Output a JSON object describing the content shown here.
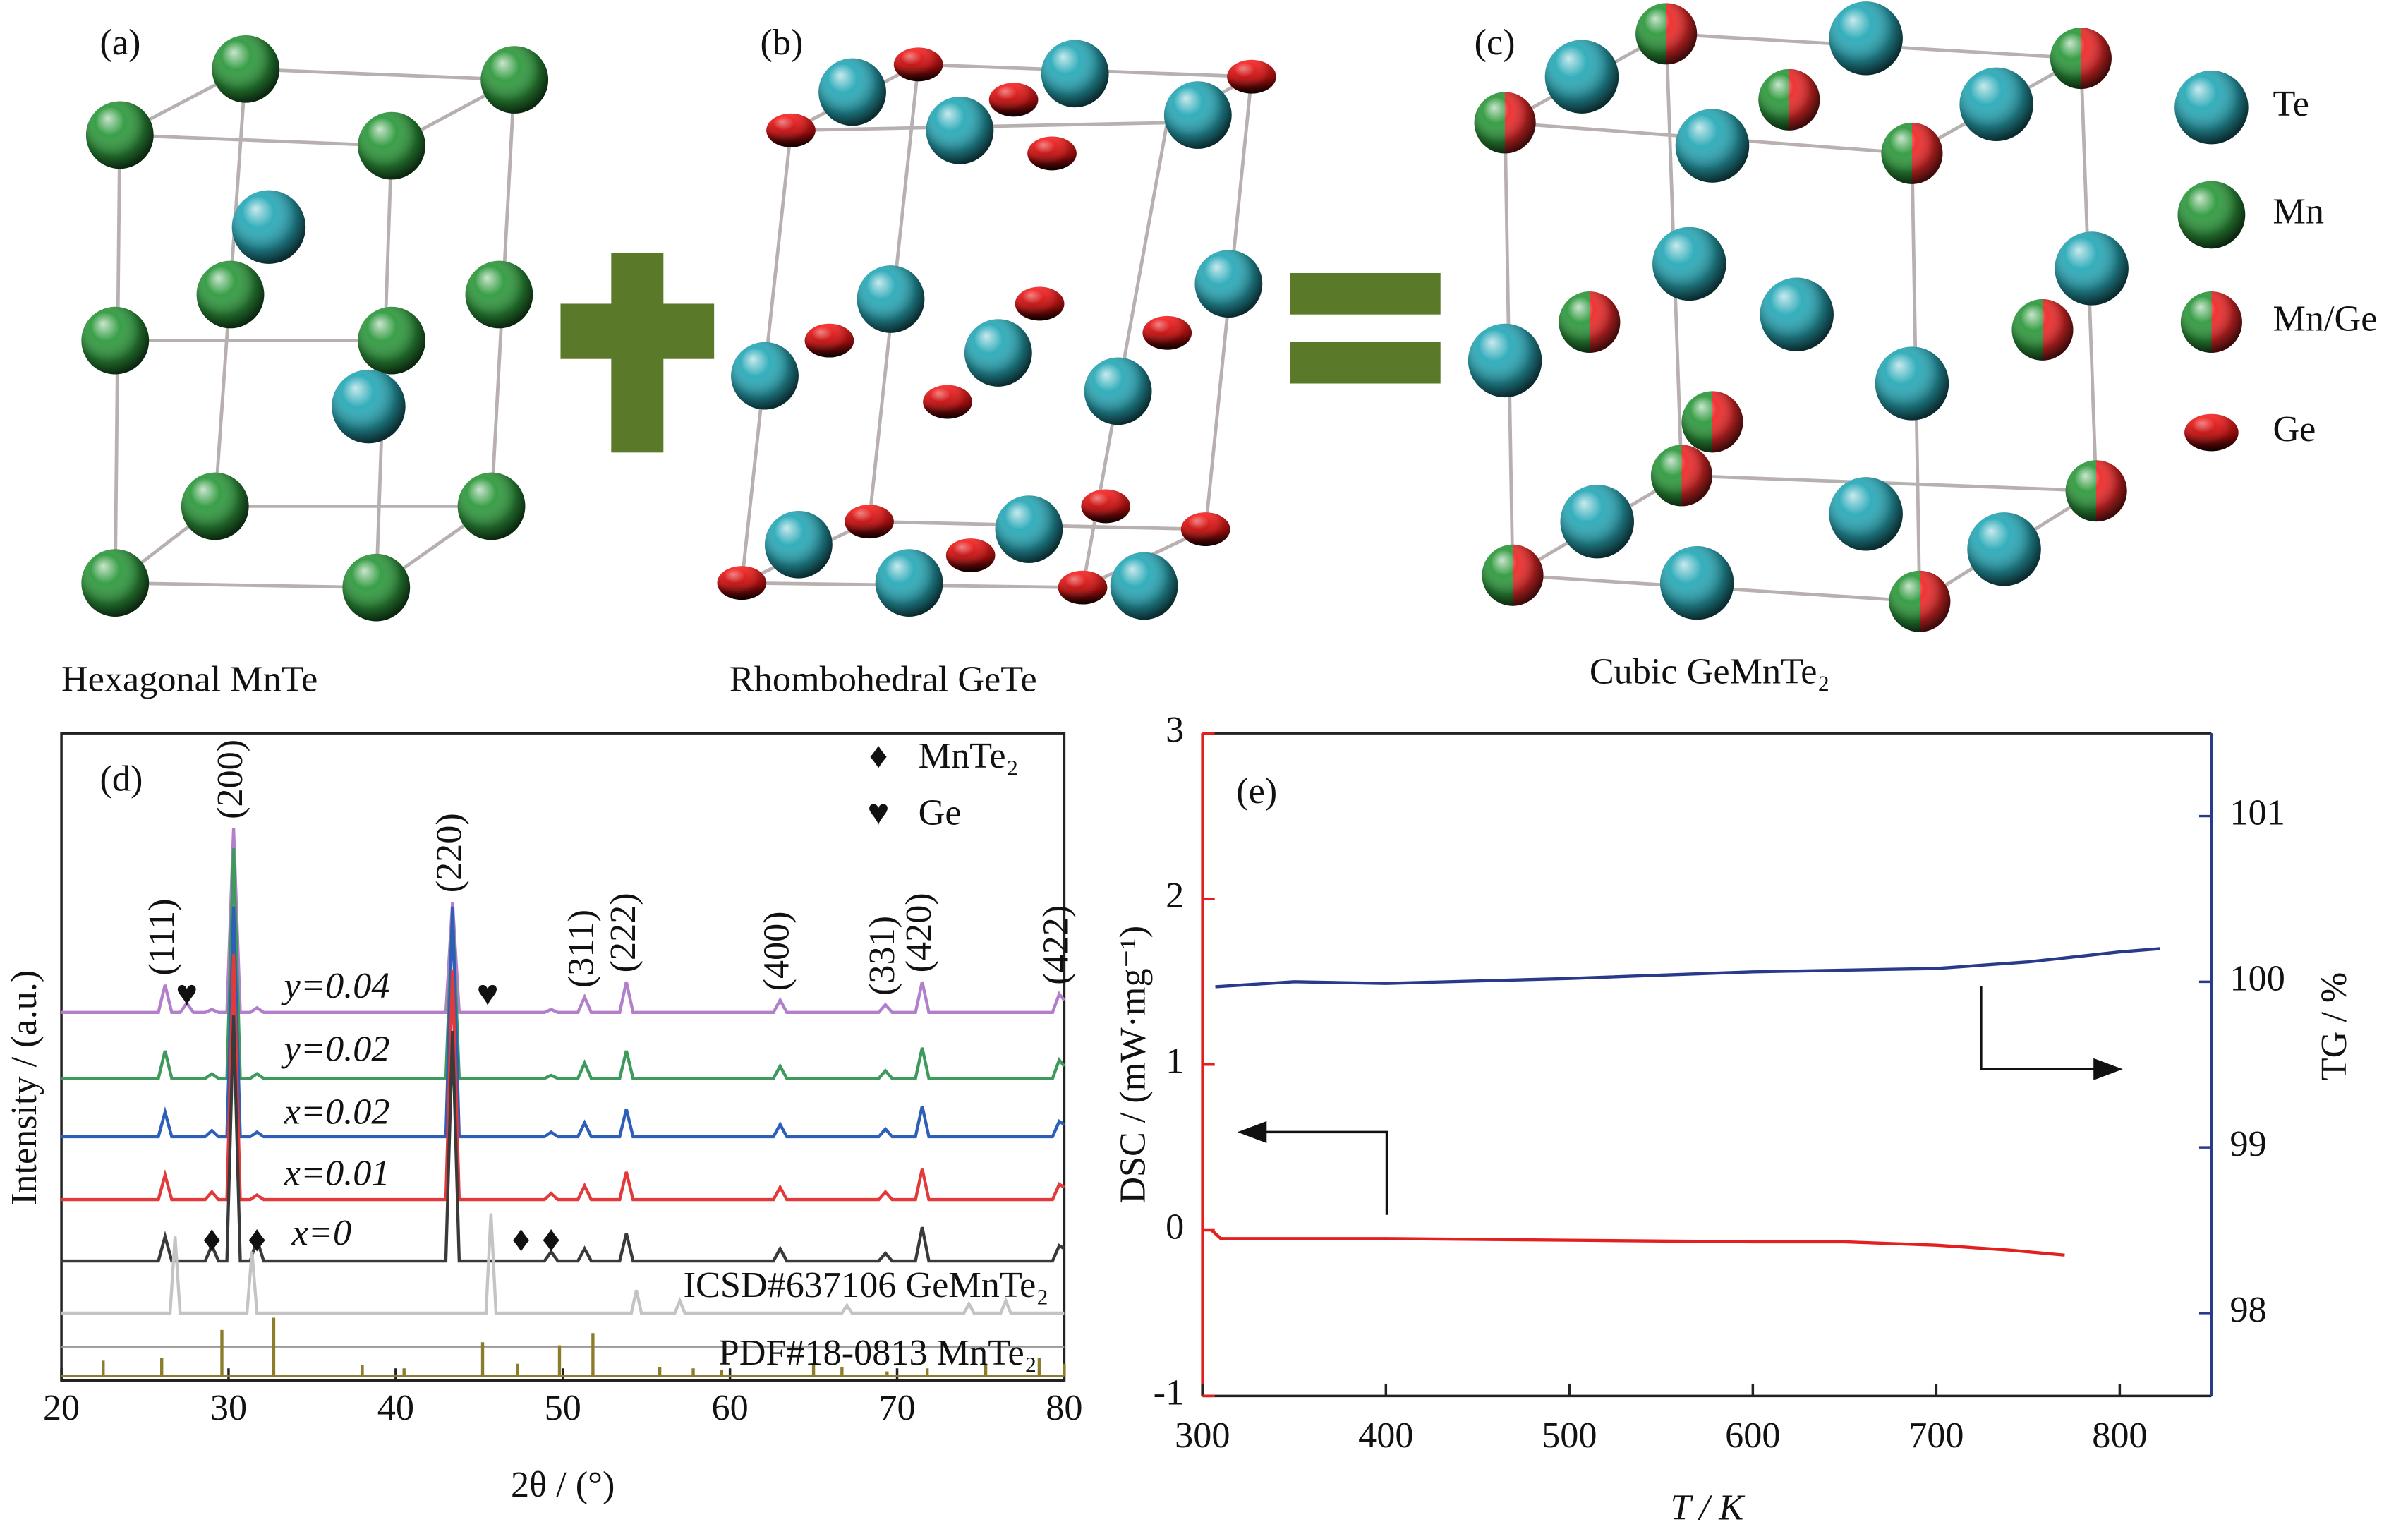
{
  "structures": [
    {
      "label": "(a)",
      "caption": "Hexagonal MnTe"
    },
    {
      "label": "(b)",
      "caption": "Rhombohedral GeTe"
    },
    {
      "label": "(c)",
      "caption": "Cubic GeMnTe₂"
    }
  ],
  "atom_legend": [
    "Te",
    "Mn",
    "Mn/Ge",
    "Ge"
  ],
  "chart_data": [
    {
      "type": "line",
      "panel": "(d)",
      "x_label": "2θ / (°)",
      "y_label": "Intensity / (a.u.)",
      "xlim": [
        20,
        80
      ],
      "xticks": [
        20,
        30,
        40,
        50,
        60,
        70,
        80
      ],
      "x": [
        20,
        25.8,
        26.2,
        26.6,
        27.1,
        27.5,
        27.9,
        28.6,
        29,
        29.4,
        29.9,
        30.3,
        30.7,
        31.3,
        31.7,
        32.1,
        43.0,
        43.4,
        43.8,
        48.9,
        49.3,
        49.7,
        50.9,
        51.3,
        51.7,
        53.4,
        53.8,
        54.2,
        62.6,
        63,
        63.4,
        68.9,
        69.3,
        69.7,
        71.1,
        71.5,
        71.9,
        79.3,
        79.7,
        80
      ],
      "series": [
        {
          "name": "y=0.04",
          "color": "#b27fcb",
          "values": [
            0,
            0,
            18,
            0,
            0,
            6,
            0,
            0,
            2,
            0,
            0,
            120,
            0,
            0,
            3,
            0,
            0,
            72,
            0,
            0,
            2,
            0,
            0,
            10,
            0,
            0,
            20,
            0,
            0,
            8,
            0,
            0,
            5,
            0,
            0,
            20,
            0,
            0,
            12,
            8
          ]
        },
        {
          "name": "y=0.02",
          "color": "#3d9a5c",
          "values": [
            0,
            0,
            18,
            0,
            0,
            0,
            0,
            0,
            3,
            0,
            0,
            150,
            0,
            0,
            3,
            0,
            0,
            110,
            0,
            0,
            2,
            0,
            0,
            10,
            0,
            0,
            18,
            0,
            0,
            8,
            0,
            0,
            5,
            0,
            0,
            20,
            0,
            0,
            12,
            8
          ]
        },
        {
          "name": "x=0.02",
          "color": "#2d5fb8",
          "values": [
            0,
            0,
            16,
            0,
            0,
            0,
            0,
            0,
            4,
            0,
            0,
            150,
            0,
            0,
            3,
            0,
            0,
            150,
            0,
            0,
            3,
            0,
            0,
            9,
            0,
            0,
            18,
            0,
            0,
            8,
            0,
            0,
            5,
            0,
            0,
            20,
            0,
            0,
            10,
            8
          ]
        },
        {
          "name": "x=0.01",
          "color": "#e23a3a",
          "values": [
            0,
            0,
            16,
            0,
            0,
            0,
            0,
            0,
            5,
            0,
            0,
            160,
            0,
            0,
            3,
            0,
            0,
            150,
            0,
            0,
            4,
            0,
            0,
            9,
            0,
            0,
            18,
            0,
            0,
            8,
            0,
            0,
            5,
            0,
            0,
            20,
            0,
            0,
            10,
            8
          ]
        },
        {
          "name": "x=0",
          "color": "#3a3a3a",
          "values": [
            0,
            0,
            16,
            0,
            0,
            0,
            0,
            0,
            10,
            0,
            0,
            160,
            0,
            0,
            14,
            0,
            0,
            150,
            0,
            0,
            6,
            0,
            0,
            8,
            0,
            0,
            18,
            0,
            0,
            8,
            0,
            0,
            5,
            0,
            0,
            22,
            0,
            0,
            10,
            8
          ]
        },
        {
          "name": "ICSD#637106 GeMnTe₂",
          "color": "#c4c4c4",
          "x": [
            20,
            26.5,
            26.8,
            27.1,
            31.1,
            31.4,
            31.7,
            45.4,
            45.7,
            46.0,
            54.1,
            54.4,
            54.7,
            56.7,
            57,
            57.3,
            66.7,
            67,
            67.3,
            74,
            74.3,
            74.6,
            76.2,
            76.5,
            76.8,
            80
          ],
          "values": [
            0,
            0,
            50,
            0,
            0,
            40,
            0,
            0,
            65,
            0,
            0,
            15,
            0,
            0,
            8,
            0,
            0,
            5,
            0,
            0,
            6,
            0,
            0,
            8,
            0,
            0
          ]
        },
        {
          "name": "PDF#18-0813 MnTe₂",
          "color": "#8b7d2a",
          "style": "stick",
          "x": [
            22.5,
            26,
            29.6,
            32.7,
            38,
            40.5,
            45.2,
            47.3,
            49.8,
            51.8,
            55.8,
            57.8,
            59.5,
            65,
            66.7,
            69.4,
            71.8,
            75.3,
            78.5,
            80
          ],
          "values": [
            10,
            12,
            30,
            38,
            7,
            5,
            22,
            8,
            20,
            28,
            6,
            5,
            4,
            7,
            6,
            3,
            5,
            7,
            12,
            8
          ]
        }
      ],
      "annotations": [
        {
          "text": "(111)",
          "x": 26.2
        },
        {
          "text": "(200)",
          "x": 30.3
        },
        {
          "text": "(220)",
          "x": 43.4
        },
        {
          "text": "(311)",
          "x": 51.3
        },
        {
          "text": "(222)",
          "x": 53.8
        },
        {
          "text": "(400)",
          "x": 63
        },
        {
          "text": "(331)",
          "x": 69.3
        },
        {
          "text": "(420)",
          "x": 71.5
        },
        {
          "text": "(422)",
          "x": 79.7
        }
      ],
      "markers": [
        {
          "name": "MnTe₂",
          "symbol": "♦",
          "x": [
            29,
            31.7,
            47.5,
            49.3
          ]
        },
        {
          "name": "Ge",
          "symbol": "♥",
          "x": [
            27.5,
            45.5
          ]
        }
      ]
    },
    {
      "type": "line",
      "panel": "(e)",
      "x_label": "T / K",
      "y_label": "DSC / (mW·mg⁻¹)",
      "y2_label": "TG / %",
      "xlim": [
        300,
        850
      ],
      "xticks": [
        300,
        400,
        500,
        600,
        700,
        800
      ],
      "ylim": [
        -1,
        3
      ],
      "yticks": [
        -1,
        0,
        1,
        2,
        3
      ],
      "y2lim": [
        97.5,
        101.5
      ],
      "y2ticks": [
        98,
        99,
        100,
        101
      ],
      "left_color": "#e22020",
      "right_color": "#2a3a8a",
      "series": [
        {
          "name": "DSC",
          "color": "#e22020",
          "x": [
            305,
            310,
            400,
            500,
            600,
            650,
            700,
            740,
            770
          ],
          "values": [
            0,
            -0.05,
            -0.05,
            -0.06,
            -0.07,
            -0.07,
            -0.09,
            -0.12,
            -0.15
          ]
        },
        {
          "name": "TG",
          "color": "#2a3a8a",
          "axis": "y2",
          "x": [
            307,
            350,
            400,
            500,
            600,
            700,
            750,
            800,
            822
          ],
          "values": [
            99.97,
            100.0,
            99.99,
            100.02,
            100.06,
            100.08,
            100.12,
            100.18,
            100.2
          ]
        }
      ]
    }
  ]
}
